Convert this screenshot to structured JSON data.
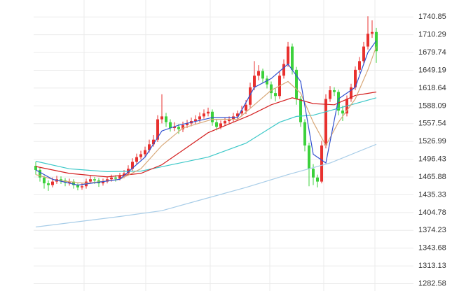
{
  "chart_data": {
    "type": "candlestick",
    "categories": [
      null,
      null,
      null,
      null,
      null,
      null,
      null,
      null,
      null,
      null,
      null,
      null,
      null,
      null,
      null,
      null,
      null,
      null,
      null,
      null,
      null,
      null,
      null,
      null,
      null,
      null,
      null,
      null,
      null,
      null,
      null,
      null,
      null,
      null,
      null,
      null,
      null,
      null,
      null,
      null,
      null,
      null,
      null,
      null,
      null,
      null,
      null,
      null,
      null,
      null,
      null,
      null,
      null,
      null,
      null,
      null,
      null,
      null,
      null,
      null,
      null,
      null,
      null,
      null,
      null,
      null,
      null,
      null,
      null,
      null,
      null,
      null,
      null,
      null,
      null,
      null,
      null,
      null,
      null,
      null,
      null,
      null
    ],
    "open": [
      1485,
      1478,
      1465,
      1455,
      1452,
      1458,
      1462,
      1460,
      1456,
      1458,
      1452,
      1448,
      1450,
      1458,
      1462,
      1460,
      1455,
      1458,
      1462,
      1465,
      1463,
      1468,
      1472,
      1480,
      1492,
      1500,
      1505,
      1512,
      1522,
      1530,
      1565,
      1570,
      1560,
      1550,
      1552,
      1548,
      1555,
      1558,
      1562,
      1565,
      1570,
      1575,
      1578,
      1560,
      1552,
      1558,
      1562,
      1565,
      1570,
      1575,
      1580,
      1590,
      1620,
      1640,
      1648,
      1635,
      1625,
      1610,
      1605,
      1640,
      1660,
      1690,
      1650,
      1600,
      1560,
      1520,
      1480,
      1465,
      1458,
      1520,
      1600,
      1615,
      1612,
      1580,
      1575,
      1600,
      1620,
      1650,
      1665,
      1690,
      1712,
      1715
    ],
    "high": [
      1492,
      1482,
      1468,
      1460,
      1465,
      1468,
      1467,
      1464,
      1463,
      1462,
      1455,
      1456,
      1463,
      1468,
      1466,
      1464,
      1463,
      1467,
      1470,
      1469,
      1473,
      1478,
      1486,
      1498,
      1506,
      1511,
      1518,
      1530,
      1538,
      1572,
      1608,
      1576,
      1565,
      1560,
      1557,
      1561,
      1564,
      1568,
      1572,
      1577,
      1582,
      1585,
      1582,
      1565,
      1563,
      1568,
      1570,
      1576,
      1580,
      1588,
      1598,
      1628,
      1665,
      1658,
      1652,
      1640,
      1630,
      1618,
      1648,
      1668,
      1698,
      1695,
      1655,
      1605,
      1565,
      1525,
      1488,
      1470,
      1528,
      1608,
      1622,
      1620,
      1616,
      1588,
      1606,
      1626,
      1656,
      1672,
      1698,
      1742,
      1735,
      1722
    ],
    "low": [
      1470,
      1458,
      1446,
      1442,
      1448,
      1454,
      1454,
      1450,
      1451,
      1446,
      1443,
      1444,
      1446,
      1455,
      1454,
      1449,
      1451,
      1455,
      1458,
      1458,
      1460,
      1464,
      1468,
      1476,
      1488,
      1496,
      1500,
      1508,
      1518,
      1526,
      1558,
      1552,
      1544,
      1545,
      1540,
      1543,
      1550,
      1553,
      1556,
      1560,
      1566,
      1570,
      1554,
      1546,
      1548,
      1554,
      1557,
      1560,
      1565,
      1570,
      1574,
      1585,
      1615,
      1632,
      1628,
      1618,
      1600,
      1596,
      1600,
      1635,
      1655,
      1642,
      1590,
      1552,
      1510,
      1450,
      1452,
      1448,
      1455,
      1515,
      1595,
      1605,
      1572,
      1562,
      1570,
      1595,
      1615,
      1645,
      1660,
      1685,
      1705,
      1662
    ],
    "close": [
      1478,
      1465,
      1455,
      1452,
      1458,
      1462,
      1460,
      1456,
      1458,
      1452,
      1448,
      1450,
      1458,
      1462,
      1460,
      1455,
      1458,
      1462,
      1465,
      1463,
      1468,
      1472,
      1480,
      1492,
      1500,
      1505,
      1512,
      1522,
      1530,
      1565,
      1570,
      1560,
      1550,
      1552,
      1548,
      1555,
      1558,
      1562,
      1565,
      1570,
      1575,
      1578,
      1560,
      1552,
      1558,
      1562,
      1565,
      1570,
      1575,
      1580,
      1590,
      1620,
      1640,
      1648,
      1635,
      1625,
      1610,
      1605,
      1640,
      1660,
      1690,
      1650,
      1600,
      1560,
      1520,
      1480,
      1465,
      1458,
      1520,
      1600,
      1615,
      1612,
      1580,
      1575,
      1600,
      1620,
      1650,
      1665,
      1690,
      1712,
      1715,
      1682
    ],
    "up_color": "#e8312f",
    "down_color": "#3cd13c",
    "lines": [
      {
        "color": "#a8cde8",
        "x": [
          0,
          20,
          30,
          40,
          50,
          60,
          64,
          70,
          81
        ],
        "values": [
          1380,
          1398,
          1408,
          1428,
          1448,
          1470,
          1478,
          1490,
          1522
        ]
      },
      {
        "color": "#3cc8c8",
        "x": [
          0,
          8,
          17,
          25,
          33,
          41,
          50,
          58,
          62,
          66,
          72,
          81
        ],
        "values": [
          1493,
          1480,
          1475,
          1476,
          1488,
          1500,
          1524,
          1560,
          1570,
          1572,
          1584,
          1602
        ]
      },
      {
        "color": "#d42020",
        "x": [
          0,
          8,
          17,
          25,
          30,
          35,
          41,
          46,
          51,
          56,
          61,
          66,
          71,
          76,
          81
        ],
        "values": [
          1484,
          1472,
          1466,
          1472,
          1487,
          1512,
          1542,
          1557,
          1572,
          1590,
          1602,
          1592,
          1590,
          1606,
          1612
        ]
      },
      {
        "color": "#d8a878",
        "x": [
          0,
          5,
          12,
          20,
          25,
          30,
          35,
          42,
          48,
          52,
          56,
          60,
          63,
          66,
          69,
          72,
          76,
          79,
          81
        ],
        "values": [
          1470,
          1460,
          1455,
          1462,
          1480,
          1520,
          1550,
          1565,
          1565,
          1590,
          1615,
          1630,
          1610,
          1560,
          1520,
          1560,
          1600,
          1650,
          1690
        ]
      },
      {
        "color": "#3050d0",
        "x": [
          0,
          4,
          10,
          20,
          26,
          30,
          34,
          42,
          48,
          52,
          56,
          60,
          63,
          66,
          69,
          72,
          76,
          79,
          81
        ],
        "values": [
          1478,
          1462,
          1452,
          1462,
          1500,
          1545,
          1555,
          1568,
          1568,
          1620,
          1635,
          1660,
          1630,
          1505,
          1490,
          1600,
          1620,
          1680,
          1700
        ]
      }
    ],
    "ylim": [
      1270,
      1770
    ],
    "yticks": [
      1740.85,
      1710.29,
      1679.74,
      1649.19,
      1618.64,
      1588.09,
      1557.54,
      1526.99,
      1496.43,
      1465.88,
      1435.33,
      1404.78,
      1374.23,
      1343.68,
      1313.13,
      1282.58
    ],
    "grid": true
  }
}
